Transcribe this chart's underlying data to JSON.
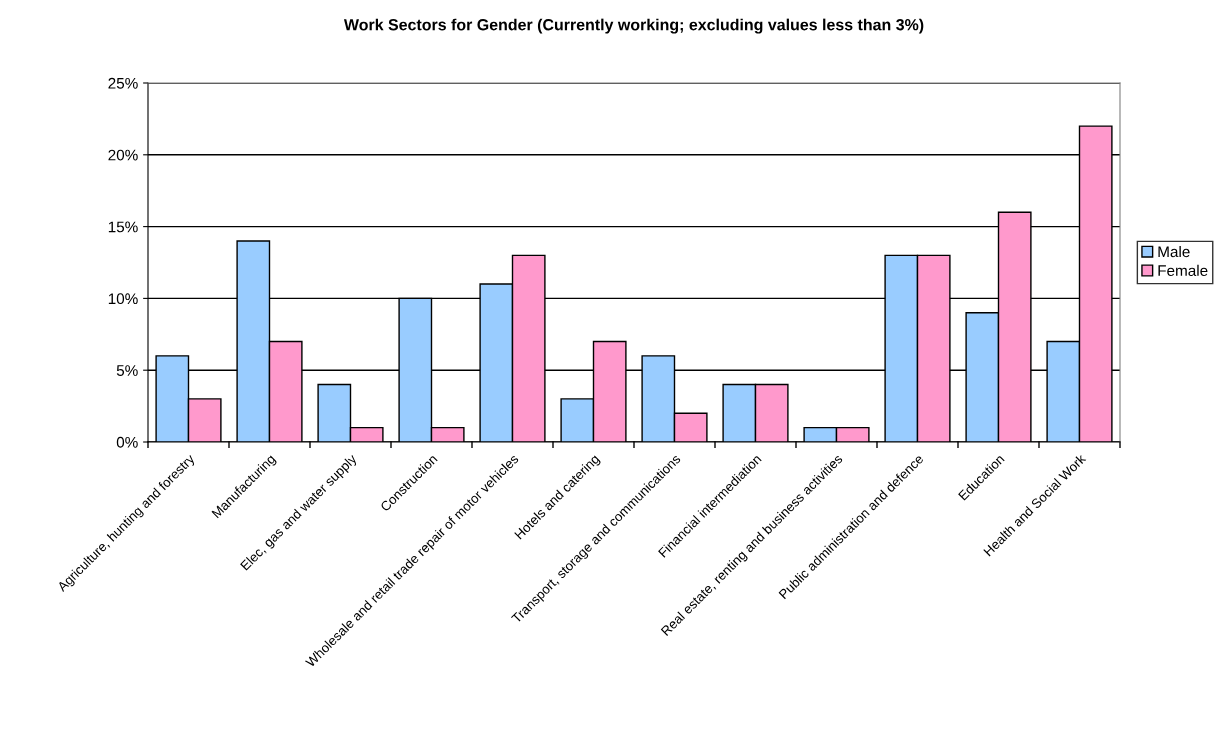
{
  "chart_data": {
    "type": "bar",
    "title": "Work Sectors for Gender (Currently working; excluding values less than 3%)",
    "categories": [
      "Agriculture, hunting and forestry",
      "Manufacturing",
      "Elec, gas and water supply",
      "Construction",
      "Wholesale and retail trade repair of motor vehicles",
      "Hotels and catering",
      "Transport, storage and communications",
      "Financial intermediation",
      "Real estate, renting and business activities",
      "Public administration and defence",
      "Education",
      "Health and Social Work"
    ],
    "series": [
      {
        "name": "Male",
        "color": "#99ccff",
        "values": [
          6,
          14,
          4,
          10,
          11,
          3,
          6,
          4,
          1,
          13,
          9,
          7
        ]
      },
      {
        "name": "Female",
        "color": "#ff99cc",
        "values": [
          3,
          7,
          1,
          1,
          13,
          7,
          2,
          4,
          1,
          13,
          16,
          22
        ]
      }
    ],
    "ylim": [
      0,
      25
    ],
    "yticks": [
      {
        "value": 0,
        "label": "0%"
      },
      {
        "value": 5,
        "label": "5%"
      },
      {
        "value": 10,
        "label": "10%"
      },
      {
        "value": 15,
        "label": "15%"
      },
      {
        "value": 20,
        "label": "20%"
      },
      {
        "value": 25,
        "label": "25%"
      }
    ],
    "grid": "y",
    "legend": "right"
  }
}
